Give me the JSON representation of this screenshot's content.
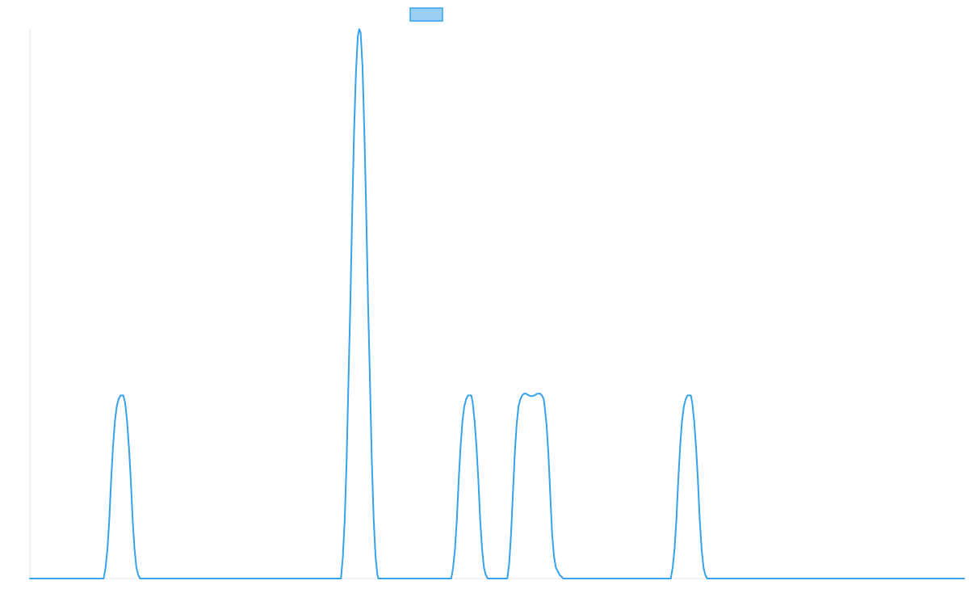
{
  "chart_data": {
    "type": "line",
    "title": "",
    "xlabel": "",
    "ylabel": "",
    "xlim": [
      0,
      1000
    ],
    "ylim": [
      0,
      1.5
    ],
    "grid": false,
    "legend": {
      "position": "top-center",
      "show_label": false
    },
    "series": [
      {
        "color": "#36a2eb",
        "fill_color": "#9ad0f5",
        "x": [
          0,
          79,
          81,
          83,
          85,
          87,
          89,
          91,
          93,
          95,
          97,
          98.5,
          100,
          102,
          104,
          106,
          108,
          110,
          112,
          114,
          116,
          118,
          119,
          333,
          335,
          337,
          339,
          341,
          343,
          345,
          347,
          349,
          351,
          352.5,
          354,
          356,
          358,
          360,
          362,
          364,
          366,
          368,
          370,
          372,
          373,
          451,
          453,
          455,
          457,
          459,
          461,
          463,
          465,
          467,
          469,
          471,
          472.5,
          474,
          476,
          478,
          480,
          482,
          484,
          486,
          488,
          490,
          492,
          493,
          511,
          513,
          515,
          517,
          519,
          521,
          523,
          525,
          527,
          529,
          531,
          532,
          534,
          536,
          538,
          540,
          542,
          544,
          546,
          548,
          550,
          551,
          553,
          555,
          557,
          559,
          561,
          563,
          565,
          567,
          569,
          571,
          573,
          575,
          577,
          589,
          686,
          688,
          690,
          692,
          694,
          696,
          698,
          700,
          702,
          704,
          706,
          707.5,
          709,
          711,
          713,
          715,
          717,
          719,
          721,
          723,
          725,
          727,
          728,
          1000
        ],
        "y": [
          0,
          0,
          0.03,
          0.08,
          0.16,
          0.27,
          0.36,
          0.43,
          0.47,
          0.49,
          0.5,
          0.5,
          0.5,
          0.48,
          0.43,
          0.36,
          0.27,
          0.16,
          0.08,
          0.03,
          0.01,
          0,
          0,
          0,
          0.06,
          0.16,
          0.32,
          0.54,
          0.75,
          1.0,
          1.22,
          1.38,
          1.48,
          1.5,
          1.49,
          1.4,
          1.22,
          1.0,
          0.75,
          0.54,
          0.32,
          0.16,
          0.06,
          0.01,
          0,
          0,
          0.03,
          0.08,
          0.16,
          0.27,
          0.36,
          0.43,
          0.47,
          0.49,
          0.5,
          0.5,
          0.5,
          0.48,
          0.43,
          0.36,
          0.27,
          0.16,
          0.08,
          0.03,
          0.01,
          0,
          0,
          0,
          0,
          0.04,
          0.12,
          0.23,
          0.34,
          0.42,
          0.47,
          0.49,
          0.5,
          0.505,
          0.505,
          0.503,
          0.5,
          0.498,
          0.498,
          0.5,
          0.503,
          0.505,
          0.505,
          0.5,
          0.49,
          0.47,
          0.42,
          0.34,
          0.23,
          0.12,
          0.06,
          0.03,
          0.02,
          0.01,
          0.005,
          0,
          0,
          0,
          0,
          0,
          0,
          0.03,
          0.08,
          0.16,
          0.27,
          0.36,
          0.43,
          0.47,
          0.49,
          0.5,
          0.5,
          0.5,
          0.48,
          0.43,
          0.36,
          0.27,
          0.16,
          0.08,
          0.03,
          0.01,
          0,
          0,
          0,
          0
        ]
      }
    ]
  }
}
